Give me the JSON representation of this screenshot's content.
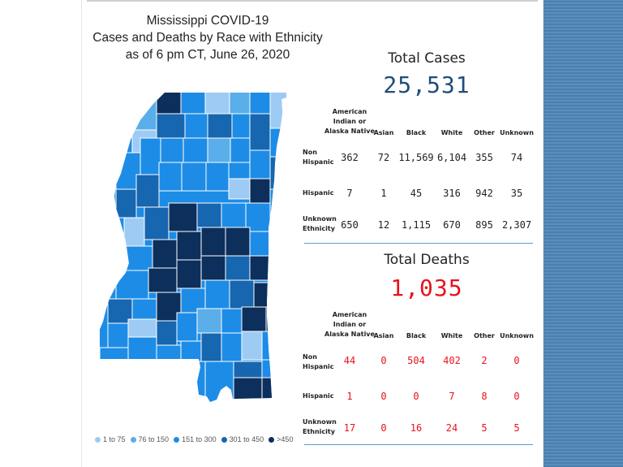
{
  "title": {
    "line1": "Mississippi COVID-19",
    "line2": "Cases and Deaths by Race with Ethnicity",
    "line3": "as of 6 pm CT, June 26, 2020"
  },
  "legend": [
    {
      "label": "1 to 75",
      "color": "#9ecbf3"
    },
    {
      "label": "76 to 150",
      "color": "#5aaeea"
    },
    {
      "label": "151 to 300",
      "color": "#1d8ce6"
    },
    {
      "label": "301 to 450",
      "color": "#1766b0"
    },
    {
      "label": ">450",
      "color": "#0d2f5c"
    }
  ],
  "headers": {
    "native": "American Indian or Alaska Native",
    "asian": "Asian",
    "black": "Black",
    "white": "White",
    "other": "Other",
    "unknown": "Unknown"
  },
  "row_labels": {
    "non_hispanic": "Non Hispanic",
    "hispanic": "Hispanic",
    "unknown_ethnicity": "Unknown Ethnicity"
  },
  "cases": {
    "label": "Total Cases",
    "total": "25,531",
    "color": "#1f4e79",
    "rows": [
      [
        "362",
        "72",
        "11,569",
        "6,104",
        "355",
        "74"
      ],
      [
        "7",
        "1",
        "45",
        "316",
        "942",
        "35"
      ],
      [
        "650",
        "12",
        "1,115",
        "670",
        "895",
        "2,307"
      ]
    ]
  },
  "deaths": {
    "label": "Total Deaths",
    "total": "1,035",
    "color": "#e8121c",
    "rows": [
      [
        "44",
        "0",
        "504",
        "402",
        "2",
        "0"
      ],
      [
        "1",
        "0",
        "0",
        "7",
        "8",
        "0"
      ],
      [
        "17",
        "0",
        "16",
        "24",
        "5",
        "5"
      ]
    ]
  }
}
